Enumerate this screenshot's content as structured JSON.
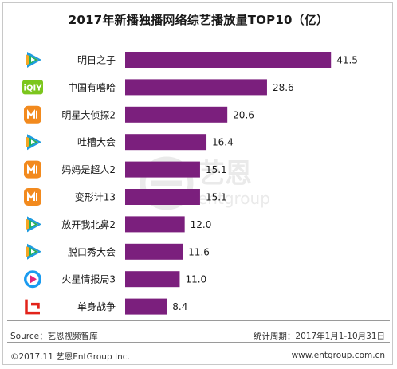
{
  "header": {
    "title": "2017年新播独播网络综艺播放量TOP10（亿）"
  },
  "chart_data": {
    "type": "bar",
    "orientation": "horizontal",
    "title": "2017年新播独播网络综艺播放量TOP10（亿）",
    "unit": "亿",
    "categories": [
      "明日之子",
      "中国有嘻哈",
      "明星大侦探2",
      "吐槽大会",
      "妈妈是超人2",
      "变形计13",
      "放开我北鼻2",
      "脱口秀大会",
      "火星情报局3",
      "单身战争"
    ],
    "values": [
      41.5,
      28.6,
      20.6,
      16.4,
      15.1,
      15.1,
      12.0,
      11.6,
      11.0,
      8.4
    ],
    "value_labels": [
      "41.5",
      "28.6",
      "20.6",
      "16.4",
      "15.1",
      "15.1",
      "12.0",
      "11.6",
      "11.0",
      "8.4"
    ],
    "platforms": [
      "tencent",
      "iqiyi",
      "mango",
      "tencent",
      "mango",
      "mango",
      "tencent",
      "tencent",
      "youku",
      "letv"
    ],
    "xlim": [
      0,
      45
    ],
    "bar_color": "#7b1f7d",
    "grid": false,
    "legend": "none"
  },
  "watermark": {
    "name": "艺恩",
    "sub": "entgroup"
  },
  "footer": {
    "source": "Source：艺恩视频智库",
    "period": "统计周期：2017年1月1-10月31日",
    "copyright": "©2017.11  艺恩EntGroup Inc.",
    "website": "www.entgroup.com.cn"
  },
  "colors": {
    "bar": "#7b1f7d",
    "tencent_green": "#20b35a",
    "tencent_blue": "#1f9ce0",
    "tencent_orange": "#f5a623",
    "iqiyi": "#7cc61d",
    "mango": "#f28a1e",
    "youku": "#1a9bf0",
    "letv": "#e2231a"
  }
}
